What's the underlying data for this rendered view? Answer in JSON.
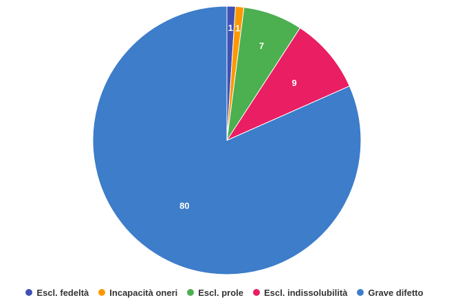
{
  "chart_data": {
    "type": "pie",
    "title": "",
    "legend_position": "bottom",
    "categories": [
      "Escl. fedeltà",
      "Incapacità oneri",
      "Escl. prole",
      "Escl. indissolubilità",
      "Grave difetto"
    ],
    "values": [
      1,
      1,
      7,
      9,
      80
    ],
    "colors": [
      "#3f51b5",
      "#ff9800",
      "#4caf50",
      "#e91e63",
      "#3d7dca"
    ],
    "data_labels": [
      "1",
      "1",
      "7",
      "9",
      "80"
    ]
  }
}
